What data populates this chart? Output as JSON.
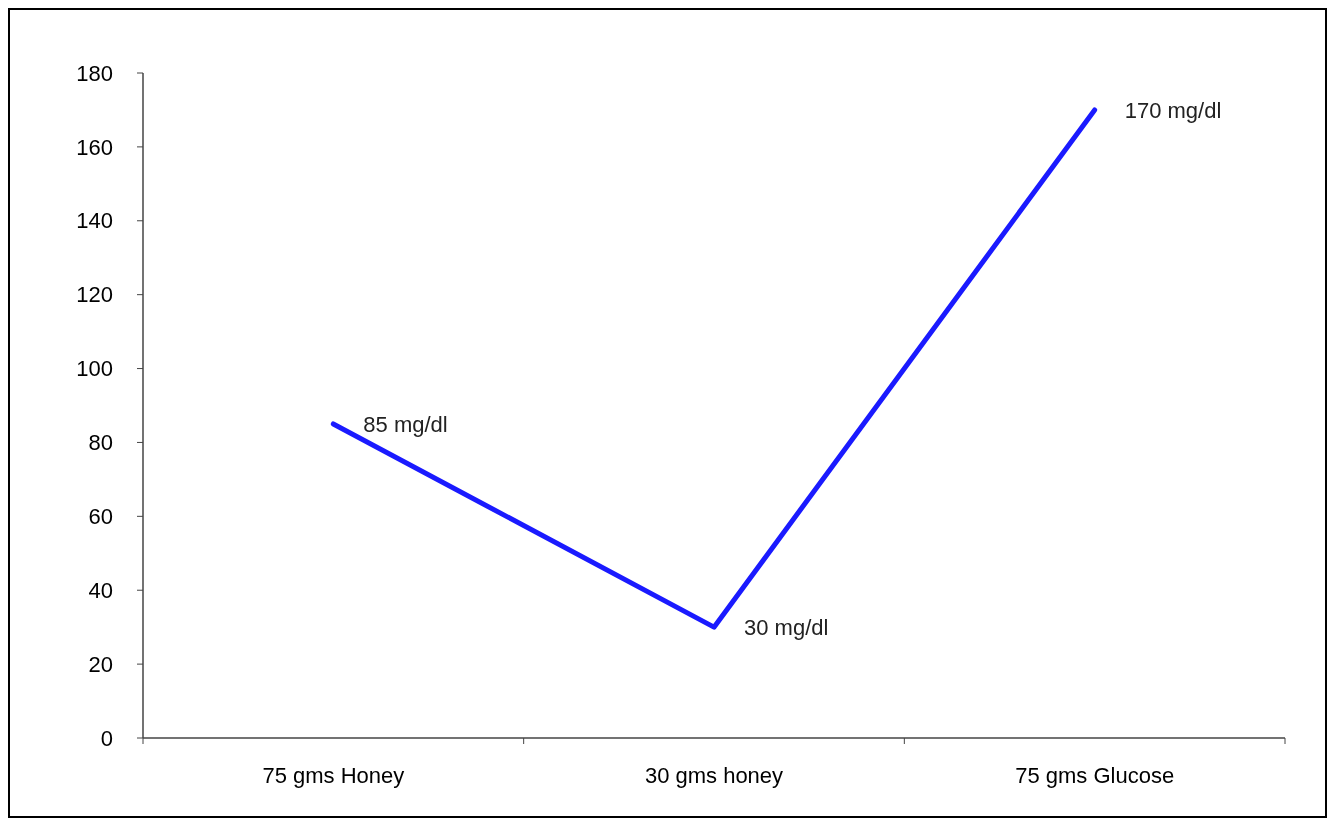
{
  "chart_data": {
    "type": "line",
    "categories": [
      "75 gms Honey",
      "30 gms honey",
      "75 gms Glucose"
    ],
    "series": [
      {
        "color": "#1a1aff",
        "values": [
          85,
          30,
          170
        ],
        "value_labels": [
          "85 mg/dl",
          "30 mg/dl",
          "170 mg/dl"
        ]
      }
    ],
    "ylim": [
      0,
      180
    ],
    "yticks": [
      0,
      20,
      40,
      60,
      80,
      100,
      120,
      140,
      160,
      180
    ],
    "line_style": "solid"
  }
}
